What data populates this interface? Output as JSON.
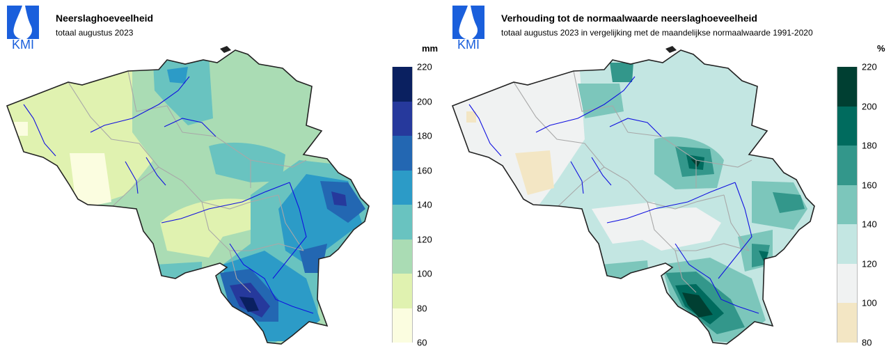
{
  "left": {
    "logo_text": "KMI",
    "title": "Neerslaghoeveelheid",
    "subtitle": "totaal augustus 2023",
    "unit": "mm",
    "legend": {
      "ticks": [
        "220",
        "200",
        "180",
        "160",
        "140",
        "120",
        "100",
        "80",
        "60"
      ],
      "colors": [
        "#0a2060",
        "#26399c",
        "#2367b2",
        "#2c9bc7",
        "#69c3c0",
        "#aadcb4",
        "#e0f2b0",
        "#fbfde0"
      ]
    }
  },
  "right": {
    "logo_text": "KMI",
    "title": "Verhouding tot de normaalwaarde neerslaghoeveelheid",
    "subtitle": "totaal augustus 2023 in vergelijking met de maandelijkse normaalwaarde 1991-2020",
    "unit": "%",
    "legend": {
      "ticks": [
        "220",
        "200",
        "180",
        "160",
        "140",
        "120",
        "100",
        "80"
      ],
      "colors": [
        "#003f32",
        "#006b5e",
        "#33978b",
        "#7cc6bb",
        "#c3e6e2",
        "#f0f2f2",
        "#f3e6c4"
      ]
    }
  }
}
